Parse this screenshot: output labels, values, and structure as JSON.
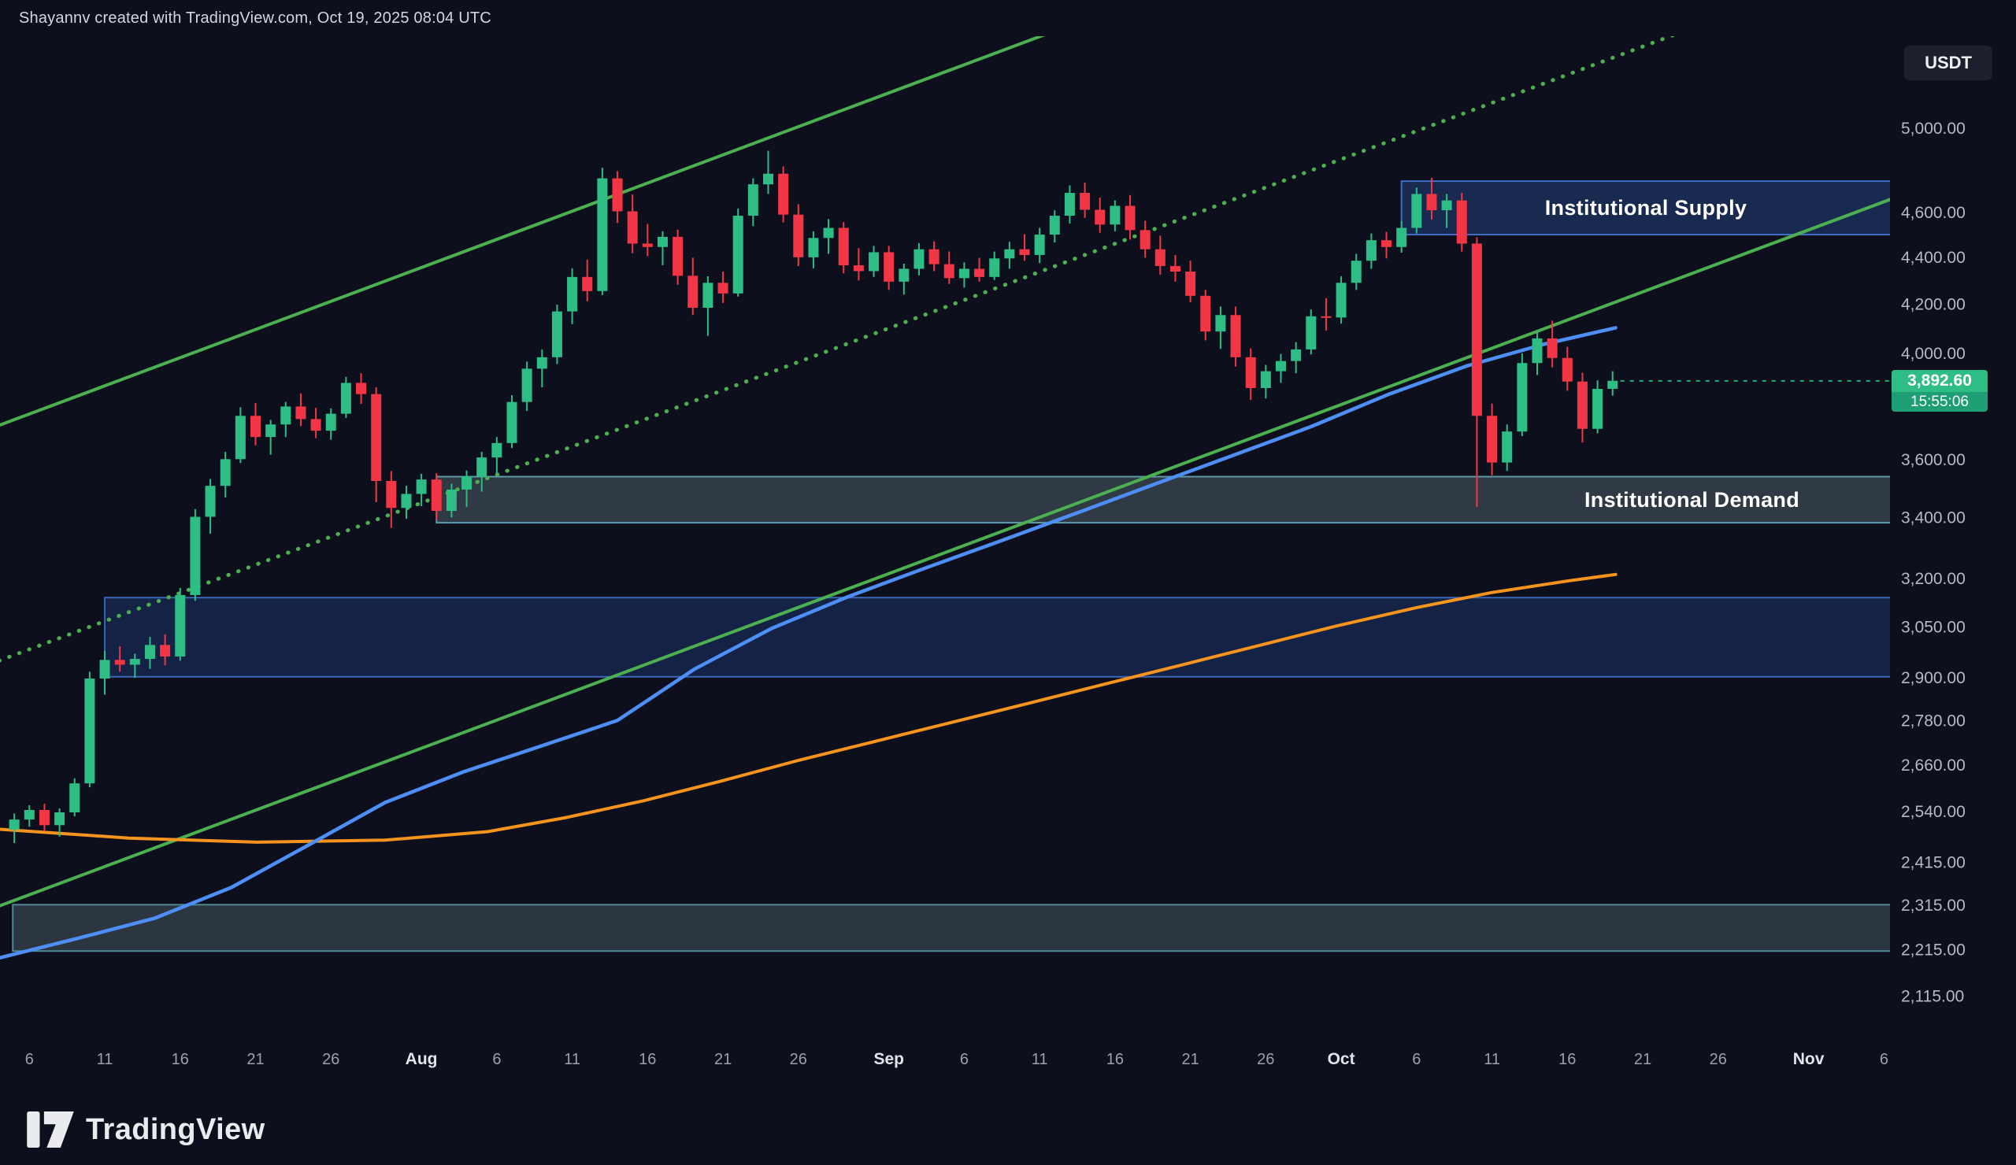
{
  "header": {
    "credit": "Shayannv created with TradingView.com, Oct 19, 2025 08:04 UTC"
  },
  "symbol_chip": {
    "label": "USDT"
  },
  "price_badge": {
    "price": "3,892.60",
    "countdown": "15:55:06"
  },
  "watermark": {
    "brand": "TradingView"
  },
  "chart_data": {
    "type": "candlestick",
    "quote_currency": "USDT",
    "interval": "1D",
    "scale": "logarithmic",
    "last_price": 3892.6,
    "annotations": [
      "Institutional Supply",
      "Institutional Demand"
    ],
    "y_axis": {
      "ticks": [
        {
          "label": "5,000.00",
          "value": 5000
        },
        {
          "label": "4,600.00",
          "value": 4600
        },
        {
          "label": "4,400.00",
          "value": 4400
        },
        {
          "label": "4,200.00",
          "value": 4200
        },
        {
          "label": "4,000.00",
          "value": 4000
        },
        {
          "label": "3,600.00",
          "value": 3600
        },
        {
          "label": "3,400.00",
          "value": 3400
        },
        {
          "label": "3,200.00",
          "value": 3200
        },
        {
          "label": "3,050.00",
          "value": 3050
        },
        {
          "label": "2,900.00",
          "value": 2900
        },
        {
          "label": "2,780.00",
          "value": 2780
        },
        {
          "label": "2,660.00",
          "value": 2660
        },
        {
          "label": "2,540.00",
          "value": 2540
        },
        {
          "label": "2,415.00",
          "value": 2415
        },
        {
          "label": "2,315.00",
          "value": 2315
        },
        {
          "label": "2,215.00",
          "value": 2215
        },
        {
          "label": "2,115.00",
          "value": 2115
        }
      ]
    },
    "x_axis": {
      "start_date": "2025-07-05",
      "ticks": [
        {
          "day": 2,
          "label": "6"
        },
        {
          "day": 7,
          "label": "11"
        },
        {
          "day": 12,
          "label": "16"
        },
        {
          "day": 17,
          "label": "21"
        },
        {
          "day": 22,
          "label": "26"
        },
        {
          "day": 28,
          "label": "Aug",
          "month": true
        },
        {
          "day": 33,
          "label": "6"
        },
        {
          "day": 38,
          "label": "11"
        },
        {
          "day": 43,
          "label": "16"
        },
        {
          "day": 48,
          "label": "21"
        },
        {
          "day": 53,
          "label": "26"
        },
        {
          "day": 59,
          "label": "Sep",
          "month": true
        },
        {
          "day": 64,
          "label": "6"
        },
        {
          "day": 69,
          "label": "11"
        },
        {
          "day": 74,
          "label": "16"
        },
        {
          "day": 79,
          "label": "21"
        },
        {
          "day": 84,
          "label": "26"
        },
        {
          "day": 89,
          "label": "Oct",
          "month": true
        },
        {
          "day": 94,
          "label": "6"
        },
        {
          "day": 99,
          "label": "11"
        },
        {
          "day": 104,
          "label": "16"
        },
        {
          "day": 109,
          "label": "21"
        },
        {
          "day": 114,
          "label": "26"
        },
        {
          "day": 120,
          "label": "Nov",
          "month": true
        },
        {
          "day": 125,
          "label": "6"
        }
      ]
    },
    "candles": {
      "start_day": 1,
      "ohlc": [
        [
          2495,
          2535,
          2462,
          2520
        ],
        [
          2520,
          2556,
          2502,
          2544
        ],
        [
          2544,
          2560,
          2490,
          2506
        ],
        [
          2506,
          2548,
          2478,
          2538
        ],
        [
          2538,
          2625,
          2528,
          2612
        ],
        [
          2612,
          2918,
          2602,
          2898
        ],
        [
          2898,
          2978,
          2852,
          2952
        ],
        [
          2952,
          2992,
          2918,
          2938
        ],
        [
          2938,
          2970,
          2900,
          2955
        ],
        [
          2955,
          3020,
          2926,
          2996
        ],
        [
          2996,
          3028,
          2936,
          2962
        ],
        [
          2962,
          3170,
          2950,
          3148
        ],
        [
          3148,
          3428,
          3130,
          3402
        ],
        [
          3402,
          3532,
          3345,
          3508
        ],
        [
          3508,
          3628,
          3468,
          3602
        ],
        [
          3602,
          3792,
          3588,
          3760
        ],
        [
          3760,
          3808,
          3652,
          3682
        ],
        [
          3682,
          3745,
          3618,
          3728
        ],
        [
          3728,
          3812,
          3682,
          3795
        ],
        [
          3795,
          3845,
          3722,
          3748
        ],
        [
          3748,
          3790,
          3678,
          3705
        ],
        [
          3705,
          3788,
          3672,
          3768
        ],
        [
          3768,
          3908,
          3752,
          3885
        ],
        [
          3885,
          3922,
          3805,
          3842
        ],
        [
          3842,
          3868,
          3452,
          3525
        ],
        [
          3525,
          3560,
          3365,
          3432
        ],
        [
          3432,
          3508,
          3395,
          3480
        ],
        [
          3480,
          3550,
          3438,
          3530
        ],
        [
          3530,
          3552,
          3392,
          3422
        ],
        [
          3422,
          3515,
          3400,
          3495
        ],
        [
          3495,
          3562,
          3435,
          3540
        ],
        [
          3540,
          3628,
          3488,
          3608
        ],
        [
          3608,
          3682,
          3548,
          3660
        ],
        [
          3660,
          3838,
          3642,
          3812
        ],
        [
          3812,
          3968,
          3778,
          3940
        ],
        [
          3940,
          4015,
          3868,
          3985
        ],
        [
          3985,
          4198,
          3958,
          4170
        ],
        [
          4170,
          4352,
          4118,
          4315
        ],
        [
          4315,
          4390,
          4212,
          4255
        ],
        [
          4255,
          4808,
          4238,
          4758
        ],
        [
          4758,
          4792,
          4552,
          4605
        ],
        [
          4605,
          4682,
          4418,
          4460
        ],
        [
          4460,
          4548,
          4405,
          4445
        ],
        [
          4445,
          4515,
          4365,
          4490
        ],
        [
          4490,
          4522,
          4282,
          4320
        ],
        [
          4320,
          4398,
          4155,
          4185
        ],
        [
          4185,
          4318,
          4070,
          4290
        ],
        [
          4290,
          4338,
          4205,
          4245
        ],
        [
          4245,
          4618,
          4232,
          4585
        ],
        [
          4585,
          4758,
          4538,
          4730
        ],
        [
          4730,
          4890,
          4685,
          4780
        ],
        [
          4780,
          4815,
          4555,
          4590
        ],
        [
          4590,
          4638,
          4362,
          4400
        ],
        [
          4400,
          4515,
          4352,
          4485
        ],
        [
          4485,
          4570,
          4415,
          4530
        ],
        [
          4530,
          4556,
          4330,
          4365
        ],
        [
          4365,
          4440,
          4300,
          4340
        ],
        [
          4340,
          4450,
          4315,
          4422
        ],
        [
          4422,
          4450,
          4260,
          4295
        ],
        [
          4295,
          4372,
          4240,
          4350
        ],
        [
          4350,
          4462,
          4322,
          4435
        ],
        [
          4435,
          4470,
          4340,
          4370
        ],
        [
          4370,
          4425,
          4285,
          4310
        ],
        [
          4310,
          4378,
          4270,
          4350
        ],
        [
          4350,
          4398,
          4295,
          4315
        ],
        [
          4315,
          4425,
          4302,
          4395
        ],
        [
          4395,
          4468,
          4350,
          4435
        ],
        [
          4435,
          4502,
          4385,
          4410
        ],
        [
          4410,
          4530,
          4375,
          4500
        ],
        [
          4500,
          4610,
          4465,
          4585
        ],
        [
          4585,
          4725,
          4550,
          4690
        ],
        [
          4690,
          4738,
          4575,
          4612
        ],
        [
          4612,
          4668,
          4508,
          4545
        ],
        [
          4545,
          4655,
          4515,
          4630
        ],
        [
          4630,
          4680,
          4478,
          4520
        ],
        [
          4520,
          4562,
          4398,
          4435
        ],
        [
          4435,
          4495,
          4325,
          4362
        ],
        [
          4362,
          4410,
          4295,
          4338
        ],
        [
          4338,
          4385,
          4208,
          4235
        ],
        [
          4235,
          4260,
          4052,
          4088
        ],
        [
          4088,
          4190,
          4018,
          4155
        ],
        [
          4155,
          4190,
          3948,
          3985
        ],
        [
          3985,
          4020,
          3820,
          3865
        ],
        [
          3865,
          3955,
          3825,
          3930
        ],
        [
          3930,
          3998,
          3885,
          3970
        ],
        [
          3970,
          4045,
          3922,
          4016
        ],
        [
          4016,
          4178,
          3996,
          4150
        ],
        [
          4150,
          4225,
          4092,
          4145
        ],
        [
          4145,
          4318,
          4120,
          4290
        ],
        [
          4290,
          4415,
          4260,
          4385
        ],
        [
          4385,
          4505,
          4350,
          4475
        ],
        [
          4475,
          4512,
          4395,
          4445
        ],
        [
          4445,
          4560,
          4420,
          4530
        ],
        [
          4530,
          4715,
          4505,
          4685
        ],
        [
          4685,
          4760,
          4568,
          4610
        ],
        [
          4610,
          4685,
          4530,
          4655
        ],
        [
          4655,
          4690,
          4425,
          4460
        ],
        [
          4460,
          4488,
          3435,
          3760
        ],
        [
          3760,
          3806,
          3545,
          3590
        ],
        [
          3590,
          3728,
          3560,
          3702
        ],
        [
          3702,
          4000,
          3685,
          3962
        ],
        [
          3962,
          4090,
          3915,
          4060
        ],
        [
          4060,
          4132,
          3945,
          3982
        ],
        [
          3982,
          4026,
          3855,
          3890
        ],
        [
          3890,
          3924,
          3662,
          3712
        ],
        [
          3712,
          3895,
          3695,
          3862
        ],
        [
          3862,
          3930,
          3836,
          3893
        ]
      ]
    },
    "ma_fast_blue": [
      [
        0,
        2197
      ],
      [
        5.2,
        2240
      ],
      [
        10.3,
        2285
      ],
      [
        15.4,
        2356
      ],
      [
        20.5,
        2457
      ],
      [
        25.6,
        2563
      ],
      [
        30.8,
        2642
      ],
      [
        35.9,
        2710
      ],
      [
        41,
        2780
      ],
      [
        43.5,
        2850
      ],
      [
        46.1,
        2925
      ],
      [
        51.2,
        3045
      ],
      [
        56.3,
        3143
      ],
      [
        61.4,
        3233
      ],
      [
        66.6,
        3325
      ],
      [
        71.7,
        3419
      ],
      [
        76.8,
        3517
      ],
      [
        81.9,
        3617
      ],
      [
        87,
        3720
      ],
      [
        92.1,
        3840
      ],
      [
        97.3,
        3950
      ],
      [
        102.4,
        4036
      ],
      [
        107.2,
        4103
      ]
    ],
    "ma_slow_orange": [
      [
        0,
        2496
      ],
      [
        8.6,
        2474
      ],
      [
        17.1,
        2464
      ],
      [
        25.6,
        2469
      ],
      [
        32.4,
        2490
      ],
      [
        37.6,
        2525
      ],
      [
        42.7,
        2567
      ],
      [
        47.8,
        2617
      ],
      [
        52.9,
        2671
      ],
      [
        58,
        2722
      ],
      [
        63.2,
        2775
      ],
      [
        68.3,
        2828
      ],
      [
        73.4,
        2883
      ],
      [
        78.5,
        2938
      ],
      [
        83.6,
        2995
      ],
      [
        88.7,
        3053
      ],
      [
        93.9,
        3108
      ],
      [
        99,
        3156
      ],
      [
        104.1,
        3193
      ],
      [
        107.2,
        3213
      ]
    ],
    "channel_lines": {
      "upper_solid": [
        [
          0,
          3725
        ],
        [
          126,
          7528
        ]
      ],
      "mid_dotted": [
        [
          0,
          2950
        ],
        [
          126,
          5962
        ]
      ],
      "lower_solid": [
        [
          0,
          2313
        ],
        [
          126,
          4675
        ]
      ]
    },
    "zones": [
      {
        "name": "institutional-supply",
        "label": "Institutional Supply",
        "day_start": 93,
        "day_end": 126,
        "price_top": 4745,
        "price_bottom": 4500,
        "fill": "rgba(32,58,112,0.62)",
        "border": "#3f6ec6"
      },
      {
        "name": "institutional-demand",
        "label": "Institutional Demand",
        "day_start": 29,
        "day_end": 126,
        "price_top": 3540,
        "price_bottom": 3382,
        "fill": "rgba(99,122,131,0.40)",
        "border": "#5e99a8"
      },
      {
        "name": "mid-accumulation",
        "label": "",
        "day_start": 7,
        "day_end": 126,
        "price_top": 3140,
        "price_bottom": 2903,
        "fill": "rgba(28,50,104,0.55)",
        "border": "#3a66b8"
      },
      {
        "name": "lower-support",
        "label": "",
        "day_start": 0.9,
        "day_end": 126,
        "price_top": 2316,
        "price_bottom": 2212,
        "fill": "rgba(95,117,126,0.38)",
        "border": "#4e8894"
      }
    ],
    "colors": {
      "background": "#0d101c",
      "bull": "#2ebd85",
      "bear": "#f23645",
      "ma_fast": "#4e8ff7",
      "ma_slow": "#f7941d",
      "channel": "#4caf50",
      "badge_bg": "#2ebd85",
      "badge_countdown_bg": "#1d9e74"
    }
  }
}
